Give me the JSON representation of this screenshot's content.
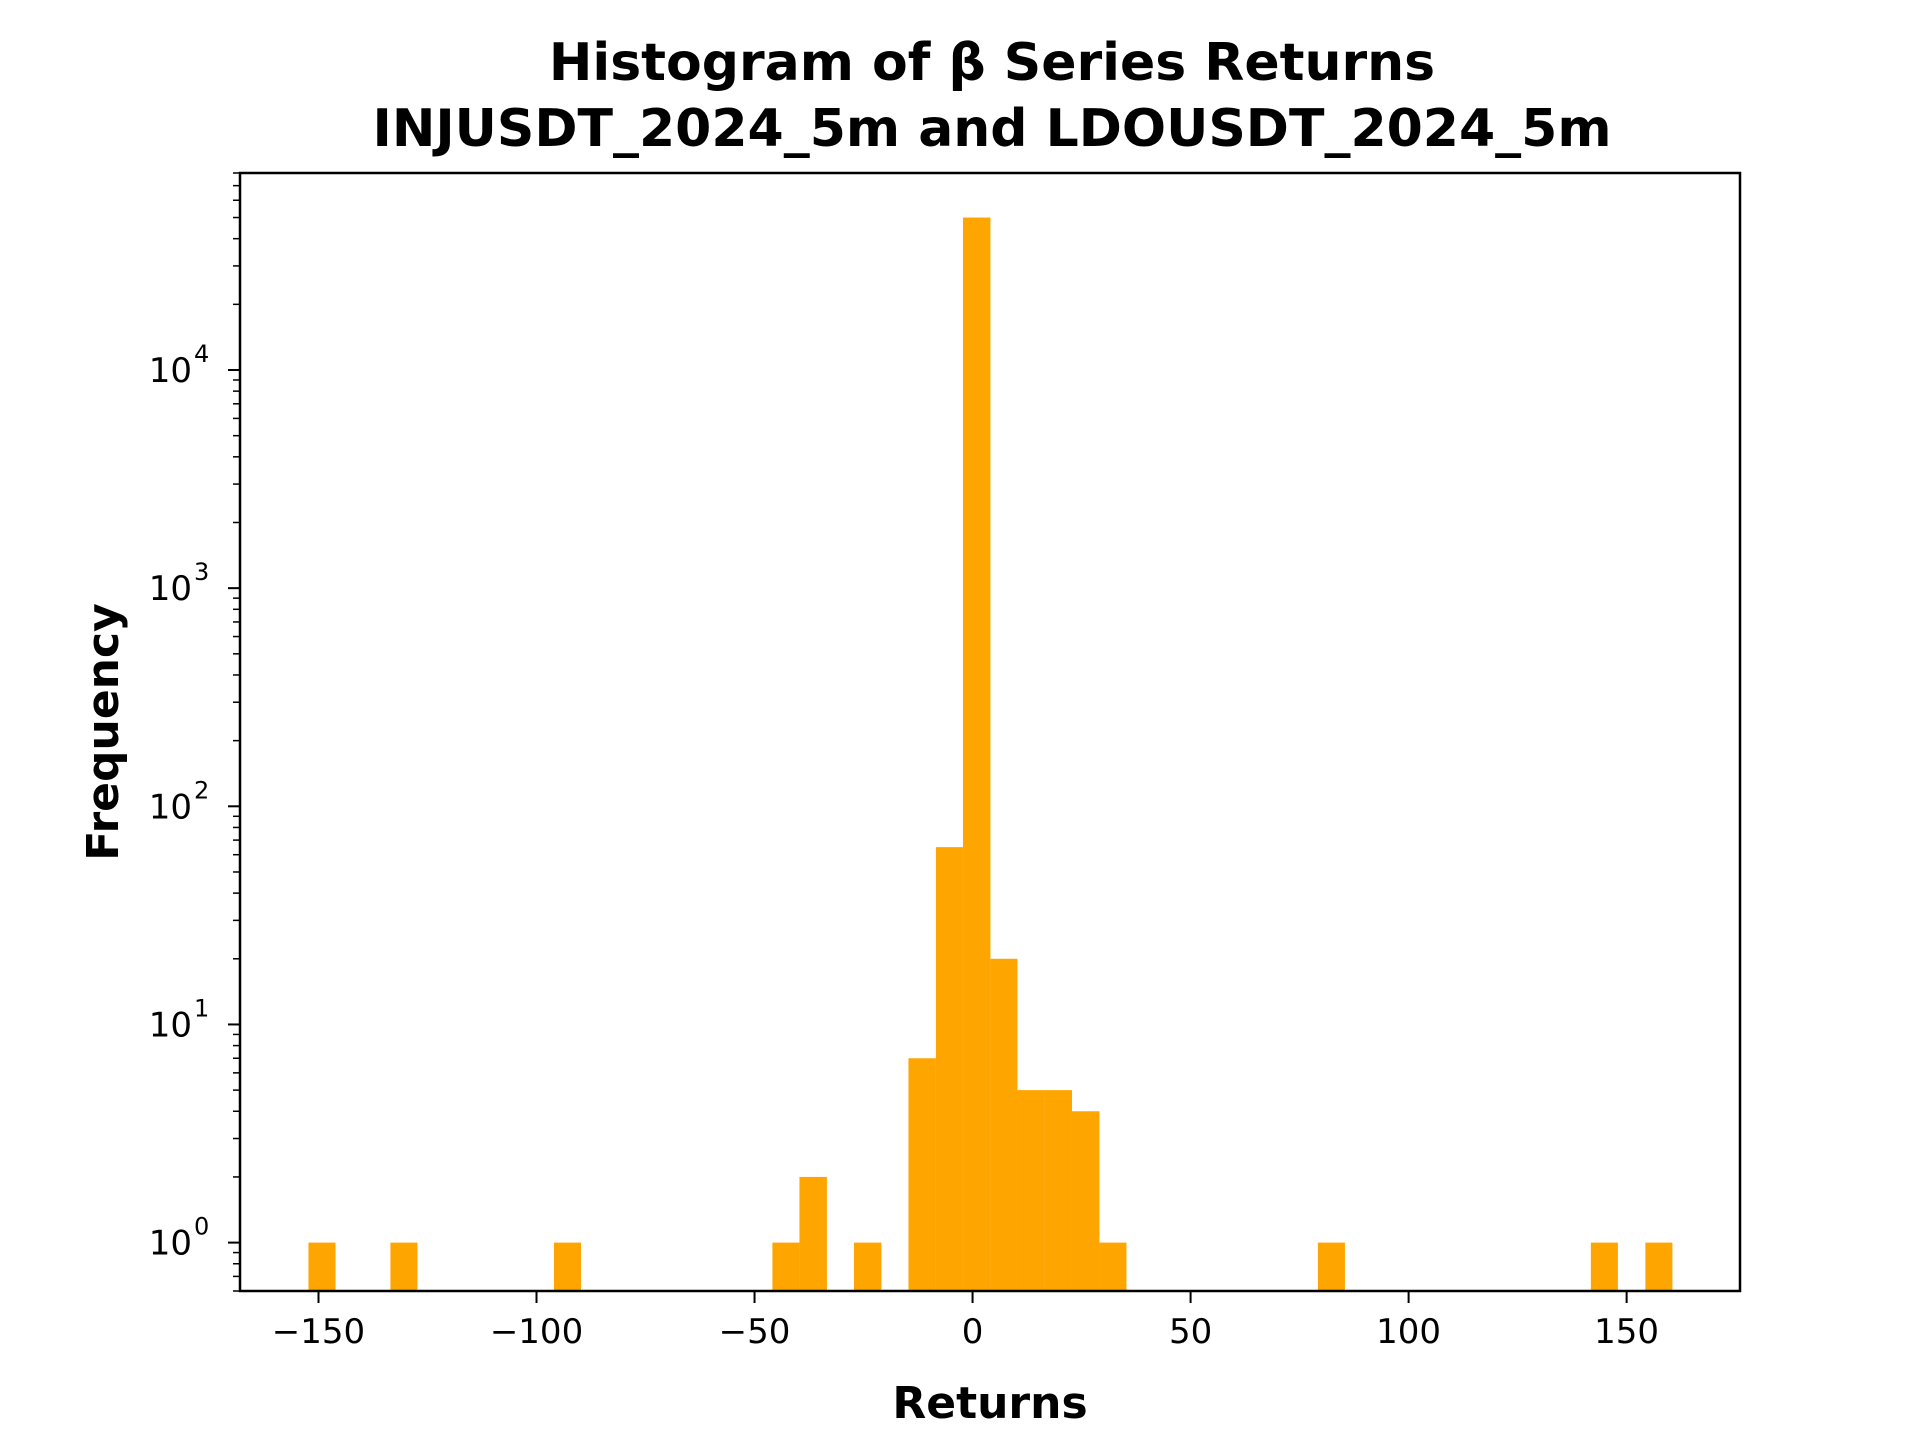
{
  "chart_data": {
    "type": "bar",
    "title_lines": [
      "Histogram of β Series Returns",
      "INJUSDT_2024_5m and LDOUSDT_2024_5m"
    ],
    "xlabel": "Returns",
    "ylabel": "Frequency",
    "yscale": "log",
    "xlim": [
      -168,
      176
    ],
    "ylim": [
      0.6,
      80000
    ],
    "bar_color": "#ffa500",
    "grid": false,
    "x_ticks": [
      {
        "value": -150,
        "label": "−150"
      },
      {
        "value": -100,
        "label": "−100"
      },
      {
        "value": -50,
        "label": "−50"
      },
      {
        "value": 0,
        "label": "0"
      },
      {
        "value": 50,
        "label": "50"
      },
      {
        "value": 100,
        "label": "100"
      },
      {
        "value": 150,
        "label": "150"
      }
    ],
    "y_ticks": [
      {
        "value": 1,
        "base": "10",
        "exp": "0"
      },
      {
        "value": 10,
        "base": "10",
        "exp": "1"
      },
      {
        "value": 100,
        "base": "10",
        "exp": "2"
      },
      {
        "value": 1000,
        "base": "10",
        "exp": "3"
      },
      {
        "value": 10000,
        "base": "10",
        "exp": "4"
      }
    ],
    "bins": [
      {
        "x0": -152.3,
        "x1": -146.1,
        "count": 1
      },
      {
        "x0": -133.5,
        "x1": -127.3,
        "count": 1
      },
      {
        "x0": -96.0,
        "x1": -89.8,
        "count": 1
      },
      {
        "x0": -45.9,
        "x1": -39.7,
        "count": 1
      },
      {
        "x0": -39.7,
        "x1": -33.4,
        "count": 2
      },
      {
        "x0": -27.2,
        "x1": -20.9,
        "count": 1
      },
      {
        "x0": -14.7,
        "x1": -8.4,
        "count": 7
      },
      {
        "x0": -8.4,
        "x1": -2.2,
        "count": 65
      },
      {
        "x0": -2.2,
        "x1": 4.1,
        "count": 50000
      },
      {
        "x0": 4.1,
        "x1": 10.3,
        "count": 20
      },
      {
        "x0": 10.3,
        "x1": 16.6,
        "count": 5
      },
      {
        "x0": 16.6,
        "x1": 22.8,
        "count": 5
      },
      {
        "x0": 22.8,
        "x1": 29.1,
        "count": 4
      },
      {
        "x0": 29.1,
        "x1": 35.3,
        "count": 1
      },
      {
        "x0": 79.2,
        "x1": 85.4,
        "count": 1
      },
      {
        "x0": 141.8,
        "x1": 148.0,
        "count": 1
      },
      {
        "x0": 154.3,
        "x1": 160.5,
        "count": 1
      }
    ]
  }
}
